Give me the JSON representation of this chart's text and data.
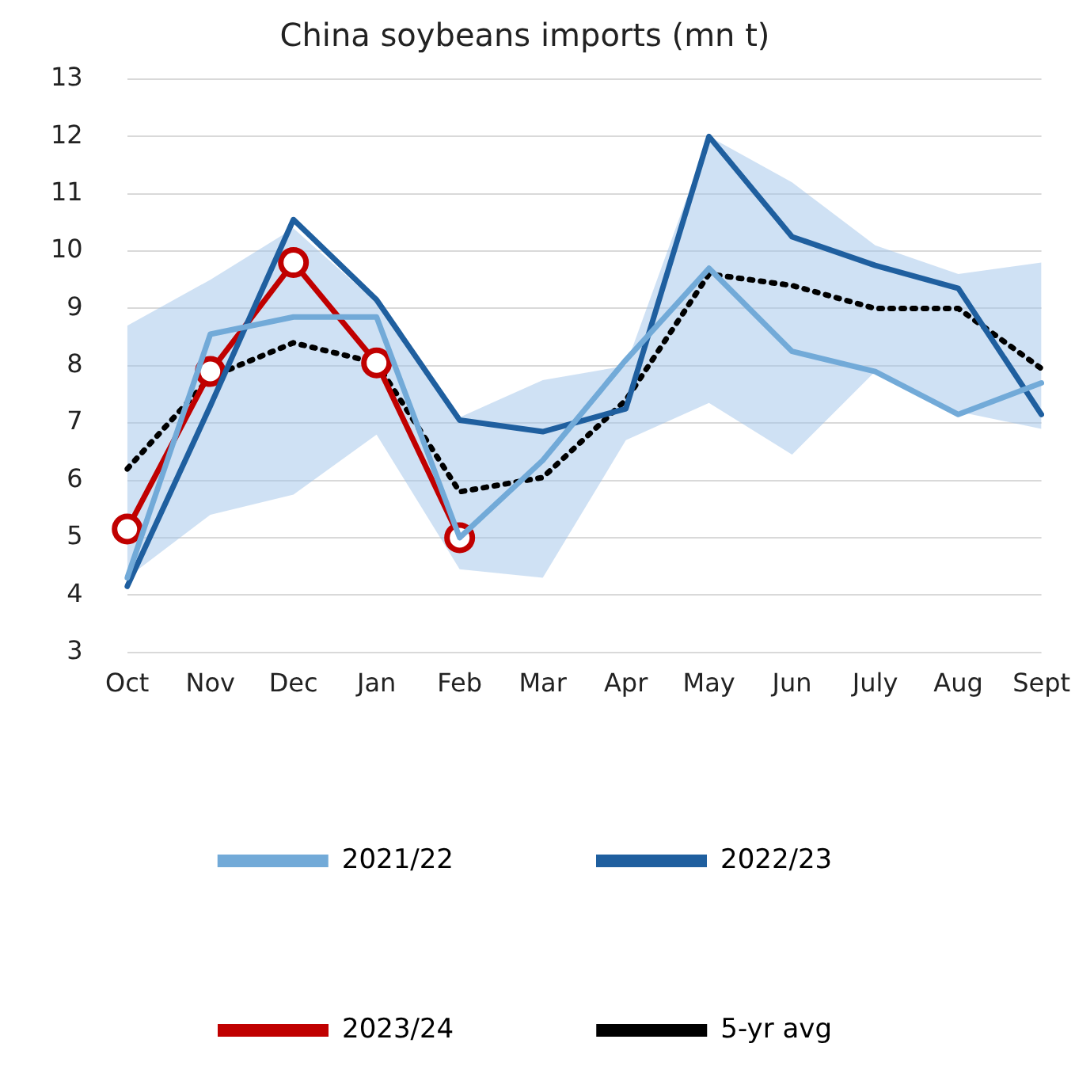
{
  "chart_data": {
    "type": "line",
    "title": "China soybeans imports (mn t)",
    "categories": [
      "Oct",
      "Nov",
      "Dec",
      "Jan",
      "Feb",
      "Mar",
      "Apr",
      "May",
      "Jun",
      "July",
      "Aug",
      "Sept"
    ],
    "series": [
      {
        "name": "2021/22",
        "color": "#72aad8",
        "values": [
          4.3,
          8.55,
          8.85,
          8.85,
          5.0,
          6.35,
          8.1,
          9.7,
          8.25,
          7.9,
          7.15,
          7.7
        ]
      },
      {
        "name": "2022/23",
        "color": "#1f5f9f",
        "values": [
          4.15,
          7.3,
          10.55,
          9.15,
          7.05,
          6.85,
          7.25,
          12.0,
          10.25,
          9.75,
          9.35,
          7.15
        ]
      },
      {
        "name": "2023/24",
        "color": "#c00000",
        "marker": "circle",
        "values": [
          5.15,
          7.9,
          9.8,
          8.05,
          5.0,
          null,
          null,
          null,
          null,
          null,
          null,
          null
        ]
      },
      {
        "name": "5-yr avg",
        "color": "#000000",
        "line_style": "dotted",
        "values": [
          6.2,
          7.8,
          8.4,
          8.05,
          5.8,
          6.05,
          7.4,
          9.6,
          9.4,
          9.0,
          9.0,
          7.95
        ],
        "lower": [
          4.3,
          5.4,
          5.75,
          6.8,
          4.45,
          4.3,
          6.7,
          7.35,
          6.45,
          7.9,
          7.2,
          6.9
        ],
        "upper": [
          8.7,
          9.5,
          10.4,
          9.1,
          7.1,
          7.75,
          8.0,
          12.0,
          11.2,
          10.1,
          9.6,
          9.8
        ]
      }
    ],
    "ylim": [
      3,
      13
    ],
    "yticks": [
      3,
      4,
      5,
      6,
      7,
      8,
      9,
      10,
      11,
      12,
      13
    ],
    "grid": "y",
    "legend": "bottom"
  }
}
